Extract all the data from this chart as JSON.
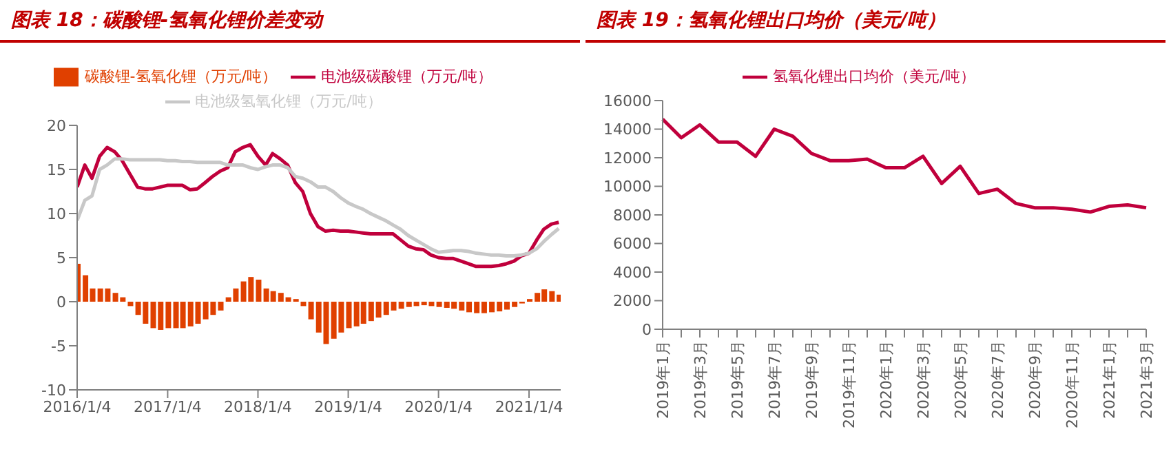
{
  "chart_data": [
    {
      "type": "line",
      "title": "图表 18：碳酸锂-氢氧化锂价差变动",
      "legend": "top",
      "grid": false,
      "x": [
        "2016-01-04",
        "2016-02-04",
        "2016-03-04",
        "2016-04-04",
        "2016-05-04",
        "2016-06-04",
        "2016-07-04",
        "2016-08-04",
        "2016-09-04",
        "2016-10-04",
        "2016-11-04",
        "2016-12-04",
        "2017-01-04",
        "2017-02-04",
        "2017-03-04",
        "2017-04-04",
        "2017-05-04",
        "2017-06-04",
        "2017-07-04",
        "2017-08-04",
        "2017-09-04",
        "2017-10-04",
        "2017-11-04",
        "2017-12-04",
        "2018-01-04",
        "2018-02-04",
        "2018-03-04",
        "2018-04-04",
        "2018-05-04",
        "2018-06-04",
        "2018-07-04",
        "2018-08-04",
        "2018-09-04",
        "2018-10-04",
        "2018-11-04",
        "2018-12-04",
        "2019-01-04",
        "2019-02-04",
        "2019-03-04",
        "2019-04-04",
        "2019-05-04",
        "2019-06-04",
        "2019-07-04",
        "2019-08-04",
        "2019-09-04",
        "2019-10-04",
        "2019-11-04",
        "2019-12-04",
        "2020-01-04",
        "2020-02-04",
        "2020-03-04",
        "2020-04-04",
        "2020-05-04",
        "2020-06-04",
        "2020-07-04",
        "2020-08-04",
        "2020-09-04",
        "2020-10-04",
        "2020-11-04",
        "2020-12-04",
        "2021-01-04",
        "2021-02-04",
        "2021-03-04",
        "2021-04-04",
        "2021-05-04"
      ],
      "xlim": [
        "2016-01-04",
        "2021-05-12"
      ],
      "xticks": [
        {
          "value": "2016-01-04",
          "label": "2016/1/4"
        },
        {
          "value": "2017-01-04",
          "label": "2017/1/4"
        },
        {
          "value": "2018-01-04",
          "label": "2018/1/4"
        },
        {
          "value": "2019-01-04",
          "label": "2019/1/4"
        },
        {
          "value": "2020-01-04",
          "label": "2020/1/4"
        },
        {
          "value": "2021-01-04",
          "label": "2021/1/4"
        }
      ],
      "ylim": [
        -10,
        20
      ],
      "yticks": [
        -10,
        -5,
        0,
        5,
        10,
        15,
        20
      ],
      "series": [
        {
          "name": "碳酸锂-氢氧化锂（万元/吨）",
          "type": "bar",
          "color": "#e04000",
          "values": [
            4.3,
            3.0,
            1.5,
            1.5,
            1.5,
            1.0,
            0.5,
            -0.5,
            -1.5,
            -2.5,
            -3.0,
            -3.2,
            -3.0,
            -3.0,
            -3.0,
            -2.8,
            -2.5,
            -2.0,
            -1.5,
            -1.0,
            0.5,
            1.5,
            2.3,
            2.8,
            2.5,
            1.5,
            1.2,
            1.0,
            0.5,
            0.3,
            -0.5,
            -2.0,
            -3.5,
            -4.8,
            -4.2,
            -3.5,
            -3.0,
            -2.8,
            -2.5,
            -2.2,
            -1.8,
            -1.5,
            -1.0,
            -0.8,
            -0.6,
            -0.5,
            -0.4,
            -0.5,
            -0.6,
            -0.7,
            -0.8,
            -1.0,
            -1.2,
            -1.3,
            -1.3,
            -1.2,
            -1.1,
            -0.9,
            -0.6,
            -0.2,
            0.3,
            1.0,
            1.4,
            1.2,
            0.8
          ]
        },
        {
          "name": "电池级碳酸锂（万元/吨）",
          "color": "#c0003c",
          "values": [
            13.0,
            15.5,
            14.0,
            16.5,
            17.5,
            17.0,
            16.0,
            14.5,
            13.0,
            12.8,
            12.8,
            13.0,
            13.2,
            13.2,
            13.2,
            12.7,
            12.8,
            13.5,
            14.2,
            14.8,
            15.2,
            17.0,
            17.5,
            17.8,
            16.5,
            15.5,
            16.8,
            16.2,
            15.5,
            13.5,
            12.5,
            10.0,
            8.5,
            8.0,
            8.1,
            8.0,
            8.0,
            7.9,
            7.8,
            7.7,
            7.7,
            7.7,
            7.7,
            7.0,
            6.3,
            6.0,
            5.9,
            5.3,
            5.0,
            4.9,
            4.9,
            4.6,
            4.3,
            4.0,
            4.0,
            4.0,
            4.1,
            4.3,
            4.6,
            5.2,
            5.5,
            7.0,
            8.2,
            8.8,
            9.0
          ]
        },
        {
          "name": "电池级氢氧化锂（万元/吨）",
          "color": "#c8c8c8",
          "values": [
            9.2,
            11.5,
            12.0,
            15.0,
            15.5,
            16.2,
            16.2,
            16.1,
            16.1,
            16.1,
            16.1,
            16.1,
            16.0,
            16.0,
            15.9,
            15.9,
            15.8,
            15.8,
            15.8,
            15.8,
            15.5,
            15.5,
            15.5,
            15.2,
            15.0,
            15.3,
            15.5,
            15.5,
            15.2,
            14.2,
            14.0,
            13.6,
            13.0,
            13.0,
            12.5,
            11.8,
            11.2,
            10.8,
            10.5,
            10.0,
            9.6,
            9.2,
            8.7,
            8.2,
            7.5,
            7.0,
            6.5,
            6.0,
            5.6,
            5.7,
            5.8,
            5.8,
            5.7,
            5.5,
            5.4,
            5.3,
            5.3,
            5.2,
            5.2,
            5.3,
            5.5,
            6.0,
            6.8,
            7.6,
            8.3
          ]
        }
      ]
    },
    {
      "type": "line",
      "title": "图表 19：氢氧化锂出口均价（美元/吨）",
      "legend": "top",
      "grid": false,
      "categories": [
        "2019年1月",
        null,
        "2019年3月",
        null,
        "2019年5月",
        null,
        "2019年7月",
        null,
        "2019年9月",
        null,
        "2019年11月",
        null,
        "2020年1月",
        null,
        "2020年3月",
        null,
        "2020年5月",
        null,
        "2020年7月",
        null,
        "2020年9月",
        null,
        "2020年11月",
        null,
        "2021年1月",
        null,
        "2021年3月"
      ],
      "ylim": [
        0,
        16000
      ],
      "yticks": [
        0,
        2000,
        4000,
        6000,
        8000,
        10000,
        12000,
        14000,
        16000
      ],
      "series": [
        {
          "name": "氢氧化锂出口均价（美元/吨）",
          "color": "#c0003c",
          "values": [
            14700,
            13400,
            14300,
            13100,
            13100,
            12100,
            14000,
            13500,
            12300,
            11800,
            11800,
            11900,
            11300,
            11300,
            12100,
            10200,
            11400,
            9500,
            9800,
            8800,
            8500,
            8500,
            8400,
            8200,
            8600,
            8700,
            8500
          ]
        }
      ]
    }
  ]
}
